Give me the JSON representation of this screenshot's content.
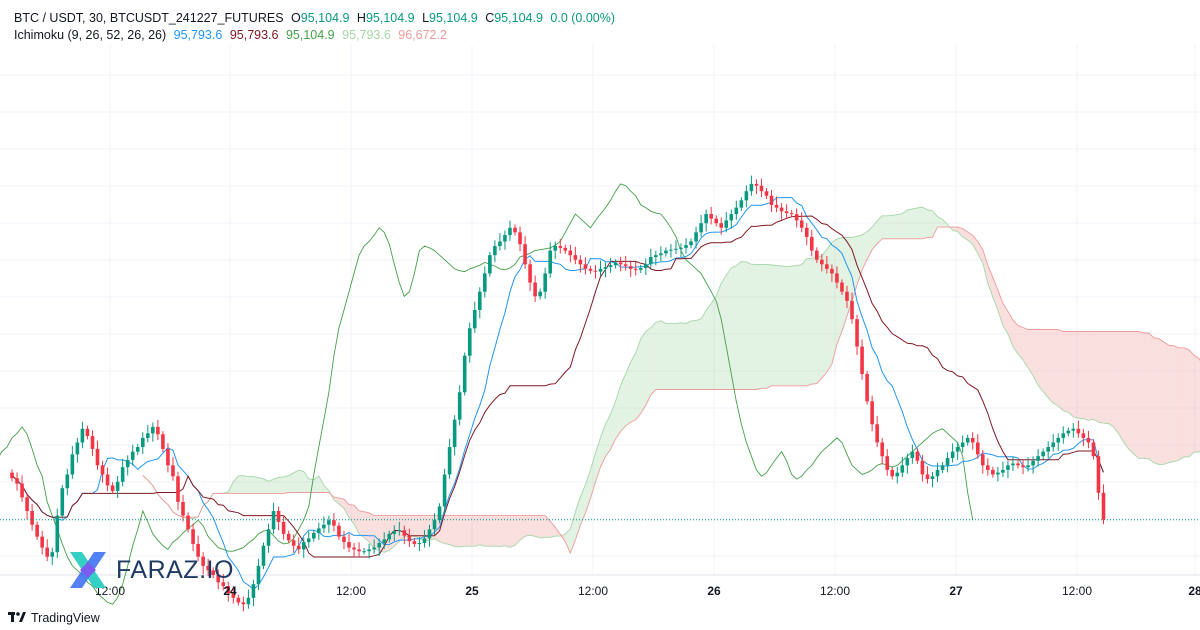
{
  "header": {
    "symbol": "BTC / USDT, 30, BTCUSDT_241227_FUTURES",
    "o_label": "O",
    "o": "95,104.9",
    "h_label": "H",
    "h": "95,104.9",
    "l_label": "L",
    "l": "95,104.9",
    "c_label": "C",
    "c": "95,104.9",
    "change": "0.0 (0.00%)"
  },
  "indicator": {
    "name": "Ichimoku (9, 26, 52, 26, 26)",
    "values": [
      {
        "text": "95,793.6",
        "color": "#2196f3"
      },
      {
        "text": "95,793.6",
        "color": "#801922"
      },
      {
        "text": "95,104.9",
        "color": "#43a047"
      },
      {
        "text": "95,793.6",
        "color": "#a5d6a7"
      },
      {
        "text": "96,672.2",
        "color": "#ef9a9a"
      }
    ]
  },
  "branding": {
    "tradingview": "TradingView",
    "watermark": "FARAZ.IO"
  },
  "colors": {
    "up": "#089981",
    "down": "#f23645",
    "tenkan": "#2196f3",
    "kijun": "#801922",
    "chikou": "#43a047",
    "cloud_bull": "#a5d6a7",
    "cloud_bear": "#ef9a9a",
    "last_price": "#089981"
  },
  "chart_data": {
    "type": "candlestick",
    "timeframe": "30",
    "x_ticks": [
      {
        "label": "12:00",
        "bold": false
      },
      {
        "label": "24",
        "bold": true
      },
      {
        "label": "12:00",
        "bold": false
      },
      {
        "label": "25",
        "bold": true
      },
      {
        "label": "12:00",
        "bold": false
      },
      {
        "label": "26",
        "bold": true
      },
      {
        "label": "12:00",
        "bold": false
      },
      {
        "label": "27",
        "bold": true
      },
      {
        "label": "12:00",
        "bold": false
      },
      {
        "label": "28",
        "bold": true
      }
    ],
    "last_price": 95104.9,
    "ylim": [
      94500,
      100300
    ],
    "series": [
      {
        "name": "price",
        "close": [
          95560,
          95500,
          95350,
          95200,
          95050,
          94920,
          94800,
          94700,
          94750,
          95150,
          95450,
          95600,
          95820,
          95950,
          96100,
          96020,
          95880,
          95700,
          95600,
          95480,
          95420,
          95520,
          95680,
          95760,
          95850,
          95900,
          96000,
          96050,
          96120,
          96040,
          95880,
          95700,
          95580,
          95300,
          95150,
          95000,
          94840,
          94700,
          94600,
          94550,
          94500,
          94420,
          94380,
          94300,
          94250,
          94200,
          94180,
          94250,
          94400,
          94600,
          94820,
          95000,
          95200,
          95080,
          94950,
          94880,
          94820,
          94780,
          94860,
          94900,
          94960,
          95010,
          95050,
          95100,
          95040,
          94920,
          94860,
          94800,
          94780,
          94760,
          94760,
          94780,
          94800,
          94850,
          94890,
          94950,
          94980,
          94990,
          94930,
          94870,
          94840,
          94850,
          94900,
          95000,
          95100,
          95250,
          95600,
          95900,
          96200,
          96500,
          96900,
          97200,
          97400,
          97600,
          97800,
          98000,
          98100,
          98150,
          98220,
          98300,
          98250,
          98120,
          97900,
          97700,
          97550,
          97600,
          97800,
          98050,
          98100,
          98080,
          98050,
          98000,
          97950,
          97900,
          97850,
          97830,
          97820,
          97850,
          97870,
          97890,
          97920,
          97900,
          97880,
          97850,
          97840,
          97860,
          97900,
          97980,
          98000,
          98020,
          98050,
          98060,
          98070,
          98080,
          98110,
          98150,
          98250,
          98350,
          98450,
          98400,
          98350,
          98300,
          98380,
          98450,
          98520,
          98600,
          98700,
          98780,
          98760,
          98700,
          98650,
          98550,
          98520,
          98480,
          98460,
          98450,
          98380,
          98300,
          98200,
          98050,
          97950,
          97900,
          97850,
          97800,
          97700,
          97600,
          97500,
          97300,
          97000,
          96700,
          96400,
          96150,
          95950,
          95800,
          95650,
          95580,
          95620,
          95700,
          95780,
          95850,
          95750,
          95600,
          95550,
          95580,
          95650,
          95700,
          95780,
          95850,
          95900,
          95950,
          96000,
          95950,
          95820,
          95700,
          95650,
          95600,
          95620,
          95650,
          95700,
          95720,
          95700,
          95680,
          95700,
          95750,
          95800,
          95850,
          95900,
          95950,
          96000,
          96050,
          96080,
          96100,
          96050,
          96000,
          95950,
          95800,
          95400,
          95105
        ]
      },
      {
        "name": "ichimoku",
        "conversion": 95793.6,
        "base": 95793.6,
        "lagging": 95104.9,
        "lead1": 95793.6,
        "lead2": 96672.2
      }
    ]
  }
}
